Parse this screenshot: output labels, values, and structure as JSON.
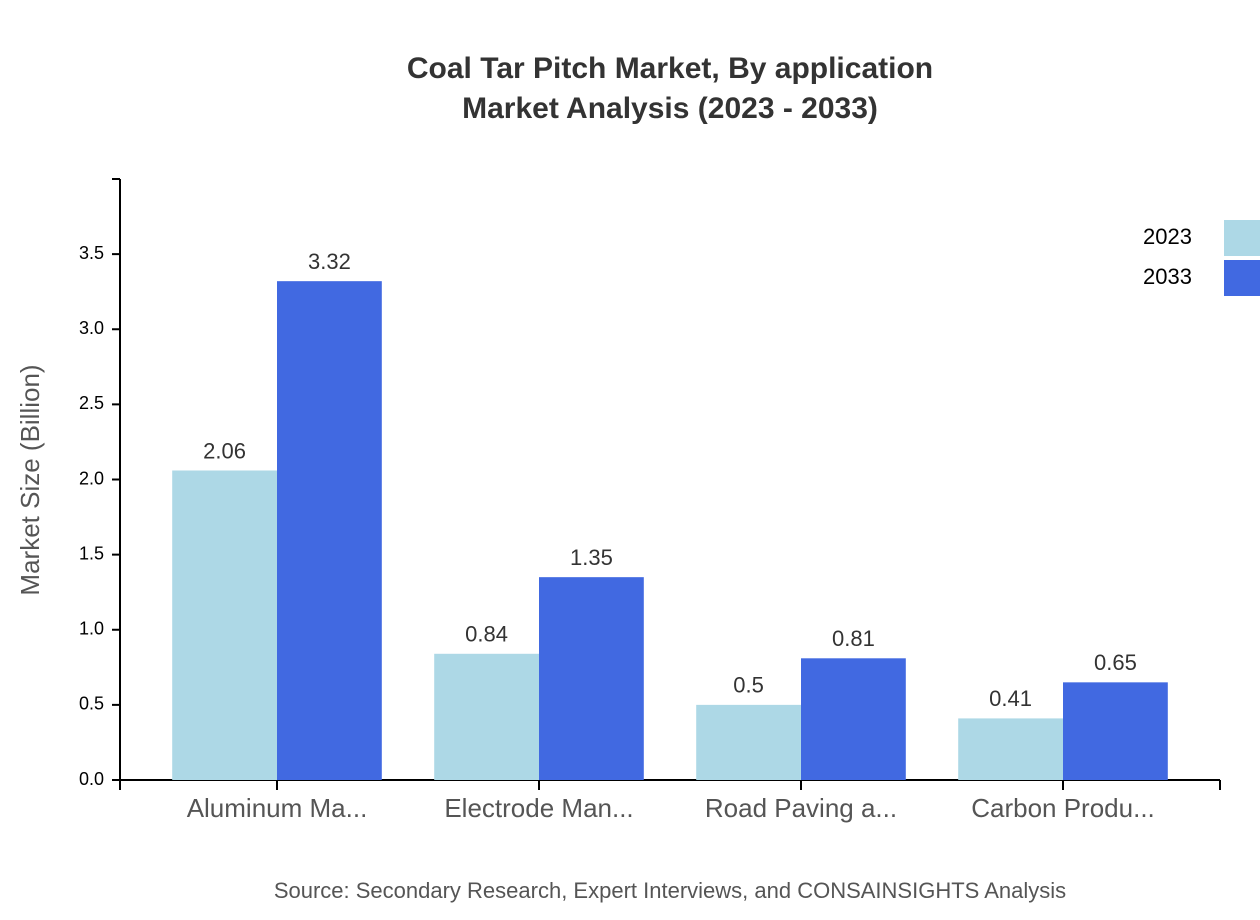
{
  "chart_data": {
    "type": "bar",
    "title": [
      "Coal Tar Pitch Market, By application",
      "Market Analysis (2023 - 2033)"
    ],
    "y_label": "Market Size (Billion)",
    "source": "Source: Secondary Research, Expert Interviews, and CONSAINSIGHTS Analysis",
    "categories": [
      "Aluminum Ma...",
      "Electrode Man...",
      "Road Paving a...",
      "Carbon Produ..."
    ],
    "series": [
      {
        "name": "2023",
        "color": "#add8e6",
        "values": [
          2.06,
          0.84,
          0.5,
          0.41
        ]
      },
      {
        "name": "2033",
        "color": "#4169e1",
        "values": [
          3.32,
          1.35,
          0.81,
          0.65
        ]
      }
    ],
    "ylim": [
      0,
      4
    ],
    "yticks": [
      {
        "value": 0,
        "label": "0.0"
      },
      0.5,
      {
        "value": 1,
        "label": "1.0"
      },
      1.5,
      {
        "value": 2,
        "label": "2.0"
      },
      2.5,
      {
        "value": 3,
        "label": "3.0"
      },
      3.5
    ],
    "legend": "top-right"
  }
}
